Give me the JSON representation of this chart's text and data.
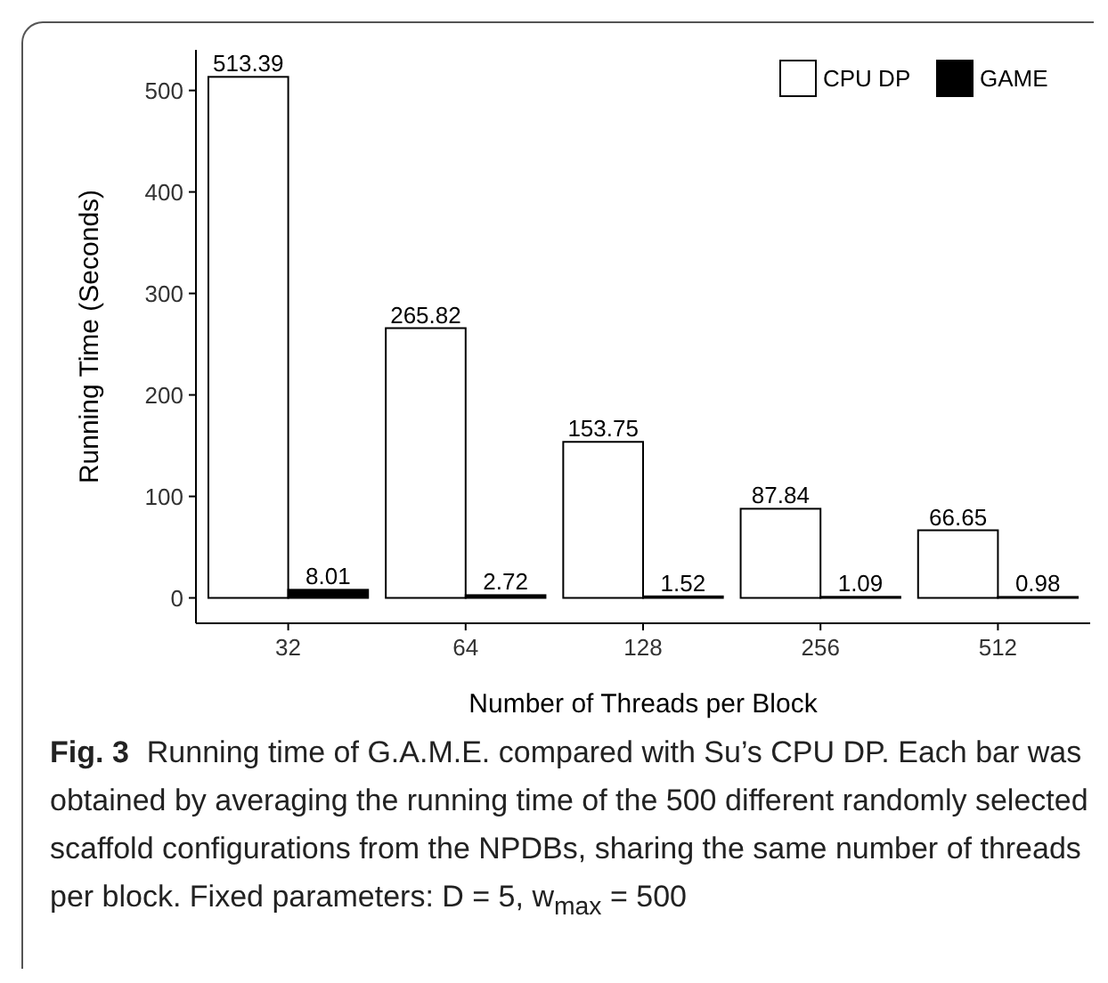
{
  "chart_data": {
    "type": "bar",
    "xlabel": "Number of Threads per Block",
    "ylabel": "Running Time (Seconds)",
    "categories": [
      "32",
      "64",
      "128",
      "256",
      "512"
    ],
    "series": [
      {
        "name": "CPU DP",
        "color": "#ffffff",
        "values": [
          513.39,
          265.82,
          153.75,
          87.84,
          66.65
        ]
      },
      {
        "name": "GAME",
        "color": "#000000",
        "values": [
          8.01,
          2.72,
          1.52,
          1.09,
          0.98
        ]
      }
    ],
    "ylim": [
      -25,
      540
    ],
    "yticks": [
      0,
      100,
      200,
      300,
      400,
      500
    ],
    "data_labels": true,
    "legend": "top right",
    "grid": false,
    "annotations": [
      "Fig. 3",
      "Running time of G.A.M.E. compared with Su’s CPU DP. Each bar was obtained by averaging the running time of the 500 different randomly selected scaffold configurations from the NPDBs, sharing the same number of threads per block. Fixed parameters: D = 5, w$_{max}$ = 500"
    ]
  }
}
